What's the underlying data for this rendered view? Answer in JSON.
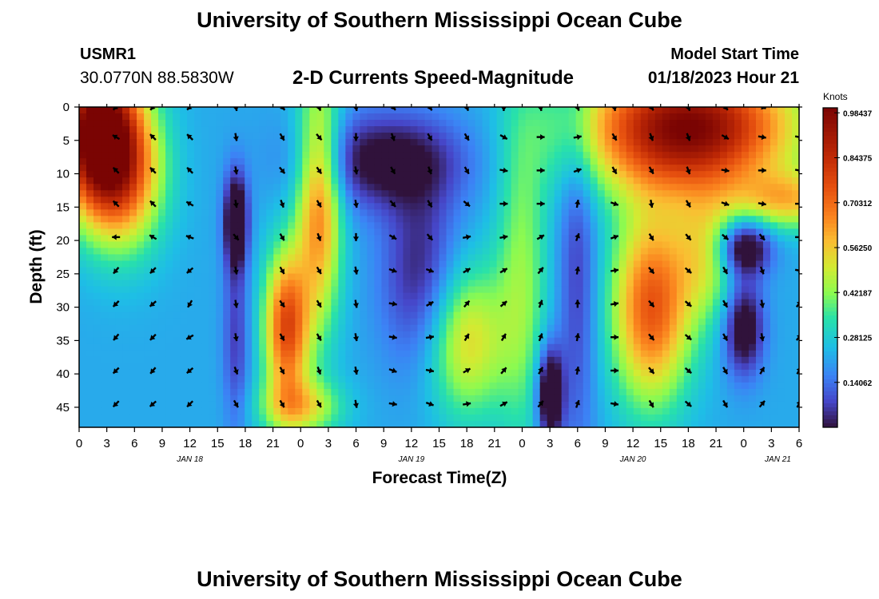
{
  "header": {
    "title": "University of Southern Mississippi Ocean Cube",
    "station_id": "USMR1",
    "coordinates": "30.0770N  88.5830W",
    "subtitle": "2-D Currents Speed-Magnitude",
    "model_start_label": "Model Start Time",
    "model_start_time": "01/18/2023 Hour 21"
  },
  "footer": {
    "title": "University of Southern Mississippi Ocean Cube"
  },
  "chart_data": {
    "type": "heatmap",
    "xlabel": "Forecast Time(Z)",
    "ylabel": "Depth (ft)",
    "x_tick_labels": [
      "0",
      "3",
      "6",
      "9",
      "12",
      "15",
      "18",
      "21",
      "0",
      "3",
      "6",
      "9",
      "12",
      "15",
      "18",
      "21",
      "0",
      "3",
      "6",
      "9",
      "12",
      "15",
      "18",
      "21",
      "0",
      "3",
      "6"
    ],
    "x_day_labels": [
      "JAN 18",
      "JAN 19",
      "JAN 20",
      "JAN 21"
    ],
    "y_tick_labels": [
      "0",
      "5",
      "10",
      "15",
      "20",
      "25",
      "30",
      "35",
      "40",
      "45"
    ],
    "ylim": [
      0,
      48
    ],
    "colorbar": {
      "unit": "Knots",
      "tick_labels": [
        "0.98437",
        "0.84375",
        "0.70312",
        "0.56250",
        "0.42187",
        "0.28125",
        "0.14062"
      ],
      "tick_values": [
        0.98437,
        0.84375,
        0.70312,
        0.5625,
        0.42187,
        0.28125,
        0.14062
      ],
      "range": [
        0,
        1.0
      ]
    },
    "speed_hotspots": [
      {
        "x": 2,
        "y": 4,
        "v": 0.82,
        "sx": 3,
        "sy": 8
      },
      {
        "x": 5,
        "y": 10,
        "v": 0.4,
        "sx": 3,
        "sy": 8
      },
      {
        "x": 17,
        "y": 17,
        "v": -0.35,
        "sx": 0.9,
        "sy": 5
      },
      {
        "x": 17,
        "y": 35,
        "v": -0.15,
        "sx": 1,
        "sy": 10
      },
      {
        "x": 22.5,
        "y": 33,
        "v": 0.55,
        "sx": 1.7,
        "sy": 8
      },
      {
        "x": 26,
        "y": 14,
        "v": 0.45,
        "sx": 1.7,
        "sy": 13
      },
      {
        "x": 24,
        "y": 45,
        "v": 0.28,
        "sx": 3,
        "sy": 3
      },
      {
        "x": 33,
        "y": 8,
        "v": -0.25,
        "sx": 6,
        "sy": 5
      },
      {
        "x": 37,
        "y": 25,
        "v": -0.2,
        "sx": 3,
        "sy": 10
      },
      {
        "x": 42,
        "y": 35,
        "v": 0.32,
        "sx": 3,
        "sy": 8
      },
      {
        "x": 48,
        "y": 25,
        "v": 0.2,
        "sx": 2,
        "sy": 18
      },
      {
        "x": 54,
        "y": 25,
        "v": -0.15,
        "sx": 1.5,
        "sy": 20
      },
      {
        "x": 51,
        "y": 43,
        "v": -0.38,
        "sx": 1,
        "sy": 5
      },
      {
        "x": 66,
        "y": 3,
        "v": 0.78,
        "sx": 8,
        "sy": 7
      },
      {
        "x": 62,
        "y": 30,
        "v": 0.52,
        "sx": 3,
        "sy": 10
      },
      {
        "x": 68,
        "y": 22,
        "v": 0.25,
        "sx": 2.5,
        "sy": 7
      },
      {
        "x": 72,
        "y": 21,
        "v": -0.35,
        "sx": 2,
        "sy": 3
      },
      {
        "x": 72,
        "y": 33,
        "v": -0.3,
        "sx": 1.5,
        "sy": 5
      },
      {
        "x": 77,
        "y": 14,
        "v": 0.3,
        "sx": 4,
        "sy": 3
      }
    ],
    "speed_base": 0.22,
    "arrow_times": [
      4,
      8,
      12,
      17,
      22,
      26,
      30,
      34,
      38,
      42,
      46,
      50,
      54,
      58,
      62,
      66,
      70,
      74,
      78
    ],
    "arrow_depths": [
      0,
      4.5,
      9.5,
      14.5,
      19.5,
      24.5,
      29.5,
      34.5,
      39.5,
      44.5
    ],
    "arrow_directions_deg": [
      [
        225,
        300,
        315,
        315,
        270,
        220,
        225,
        220,
        225,
        225
      ],
      [
        220,
        315,
        315,
        315,
        300,
        225,
        230,
        225,
        220,
        230
      ],
      [
        225,
        315,
        315,
        300,
        290,
        230,
        210,
        240,
        230,
        225
      ],
      [
        170,
        170,
        170,
        170,
        140,
        170,
        170,
        170,
        160,
        150
      ],
      [
        140,
        150,
        140,
        160,
        150,
        150,
        145,
        150,
        150,
        150
      ],
      [
        160,
        140,
        145,
        150,
        160,
        150,
        150,
        150,
        160,
        150
      ],
      [
        170,
        180,
        170,
        170,
        180,
        170,
        170,
        170,
        170,
        170
      ],
      [
        140,
        160,
        150,
        140,
        120,
        110,
        100,
        100,
        110,
        100
      ],
      [
        150,
        150,
        160,
        150,
        140,
        110,
        60,
        80,
        100,
        110
      ],
      [
        160,
        150,
        150,
        130,
        80,
        60,
        40,
        30,
        60,
        80
      ],
      [
        180,
        120,
        100,
        90,
        80,
        60,
        50,
        30,
        40,
        60
      ],
      [
        170,
        90,
        90,
        90,
        60,
        40,
        20,
        20,
        30,
        40
      ],
      [
        160,
        80,
        70,
        10,
        20,
        10,
        0,
        10,
        10,
        20
      ],
      [
        170,
        150,
        150,
        110,
        70,
        80,
        80,
        90,
        90,
        100
      ],
      [
        150,
        160,
        150,
        170,
        150,
        140,
        140,
        140,
        140,
        150
      ],
      [
        160,
        160,
        160,
        150,
        140,
        130,
        130,
        130,
        130,
        130
      ],
      [
        140,
        120,
        100,
        110,
        130,
        150,
        150,
        150,
        150,
        150
      ],
      [
        110,
        100,
        90,
        100,
        140,
        160,
        170,
        170,
        30,
        40
      ],
      [
        100,
        100,
        100,
        90,
        90,
        100,
        40,
        40,
        30,
        30
      ]
    ]
  }
}
